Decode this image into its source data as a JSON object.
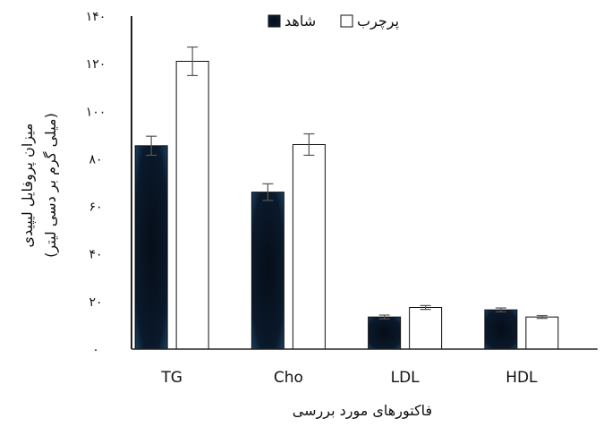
{
  "chart_data": {
    "type": "bar",
    "categories": [
      "TG",
      "Cho",
      "LDL",
      "HDL"
    ],
    "series": [
      {
        "name": "شاهد",
        "values": [
          85.5,
          66,
          13.5,
          16.5
        ],
        "errors": [
          4,
          3.5,
          0.8,
          0.8
        ],
        "fill": "#0a1a2c"
      },
      {
        "name": "پرچرب",
        "values": [
          121,
          86,
          17.5,
          13.5
        ],
        "errors": [
          6,
          4.5,
          0.8,
          0.6
        ],
        "fill": "#ffffff"
      }
    ],
    "ylim": [
      0,
      140
    ],
    "yticks": [
      0,
      20,
      40,
      60,
      80,
      100,
      120,
      140
    ],
    "ytick_labels": [
      "۰",
      "۲۰",
      "۴۰",
      "۶۰",
      "۸۰",
      "۱۰۰",
      "۱۲۰",
      "۱۴۰"
    ],
    "xlabel": "فاکتورهای مورد بررسی",
    "ylabel_line1": "میزان پروفایل لیپیدی",
    "ylabel_line2": "(میلی گرم بر دسی لیتر)",
    "legend_position": "top-center",
    "grid": false
  },
  "colors": {
    "axis": "#222222",
    "error_bar": "#555555",
    "bar_outline": "#111111"
  }
}
